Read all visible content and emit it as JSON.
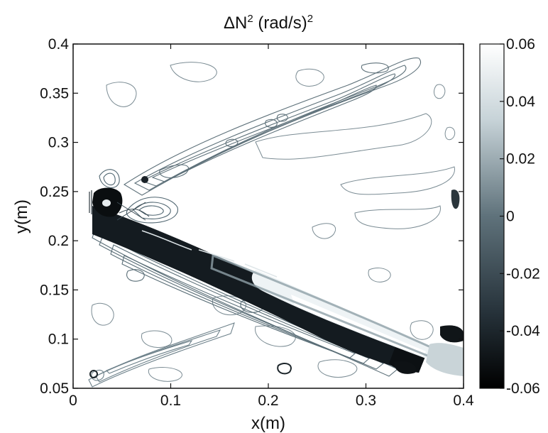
{
  "chart_data": {
    "type": "heatmap",
    "title_main": "ΔN",
    "title_sup": "2",
    "title_units": " (rad/s)",
    "title_units_sup": "2",
    "xlabel": "x(m)",
    "ylabel": "y(m)",
    "xlim": [
      0,
      0.4
    ],
    "ylim": [
      0.05,
      0.4
    ],
    "x_ticks": [
      0,
      0.1,
      0.2,
      0.3,
      0.4
    ],
    "x_tick_labels": [
      "0",
      "0.1",
      "0.2",
      "0.3",
      "0.4"
    ],
    "y_ticks": [
      0.05,
      0.1,
      0.15,
      0.2,
      0.25,
      0.3,
      0.35,
      0.4
    ],
    "y_tick_labels": [
      "0.05",
      "0.1",
      "0.15",
      "0.2",
      "0.25",
      "0.3",
      "0.35",
      "0.4"
    ],
    "colorbar": {
      "min": -0.06,
      "max": 0.06,
      "ticks": [
        0.06,
        0.04,
        0.02,
        0,
        -0.02,
        -0.04,
        -0.06
      ],
      "tick_labels": [
        "0.06",
        "0.04",
        "0.02",
        "0",
        "-0.02",
        "-0.04",
        "-0.06"
      ],
      "color_low": "#000000",
      "color_mid": "#5c6f78",
      "color_high": "#ffffff"
    },
    "grid": false,
    "features": [
      {
        "name": "source-dark-core",
        "value": -0.06,
        "x": 0.035,
        "y": 0.237
      },
      {
        "name": "dark-band-lower",
        "value": -0.05,
        "x_start": 0.04,
        "y_start": 0.225,
        "x_end": 0.36,
        "y_end": 0.08
      },
      {
        "name": "light-band-centre",
        "value": 0.06,
        "x_start": 0.2,
        "y_start": 0.145,
        "x_end": 0.37,
        "y_end": 0.09
      },
      {
        "name": "upper-ray",
        "value": 0.02,
        "x_start": 0.075,
        "y_start": 0.262,
        "x_end": 0.33,
        "y_end": 0.38
      },
      {
        "name": "lower-ray",
        "value": 0.015,
        "x_start": 0.025,
        "y_start": 0.062,
        "x_end": 0.16,
        "y_end": 0.11
      }
    ]
  }
}
